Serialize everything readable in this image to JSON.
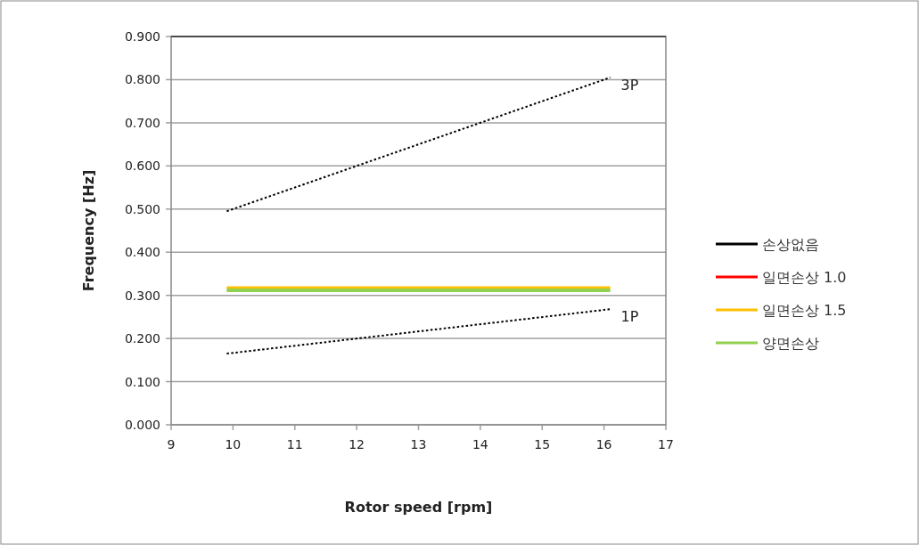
{
  "chart_data": {
    "type": "line",
    "xlabel": "Rotor speed  [rpm]",
    "ylabel": "Frequency  [Hz]",
    "xlim": [
      9,
      17
    ],
    "xticks": [
      9,
      10,
      11,
      12,
      13,
      14,
      15,
      16,
      17
    ],
    "ylim": [
      0,
      0.9
    ],
    "yticks": [
      {
        "value": 0,
        "label": "0.000"
      },
      {
        "value": 0.1,
        "label": "0.100"
      },
      {
        "value": 0.2,
        "label": "0.200"
      },
      {
        "value": 0.3,
        "label": "0.300"
      },
      {
        "value": 0.4,
        "label": "0.400"
      },
      {
        "value": 0.5,
        "label": "0.500"
      },
      {
        "value": 0.6,
        "label": "0.600"
      },
      {
        "value": 0.7,
        "label": "0.700"
      },
      {
        "value": 0.8,
        "label": "0.800"
      },
      {
        "value": 0.9,
        "label": "0.900"
      }
    ],
    "grid": "y",
    "legend": "right",
    "x": [
      9.9,
      16.1
    ],
    "series": [
      {
        "name": "손상없음",
        "color": "#000000",
        "values": [
          null,
          null
        ]
      },
      {
        "name": "일면손상 1.0",
        "color": "#ff0000",
        "values": [
          null,
          null
        ]
      },
      {
        "name": "일면손상 1.5",
        "color": "#ffc000",
        "values": [
          0.317,
          0.317
        ]
      },
      {
        "name": "양면손상",
        "color": "#92d050",
        "values": [
          0.312,
          0.312
        ]
      },
      {
        "name": "3P",
        "color": "#000000",
        "line_style": "dotted",
        "values": [
          0.495,
          0.805
        ]
      },
      {
        "name": "1P",
        "color": "#000000",
        "line_style": "dotted",
        "values": [
          0.165,
          0.268
        ]
      }
    ]
  }
}
